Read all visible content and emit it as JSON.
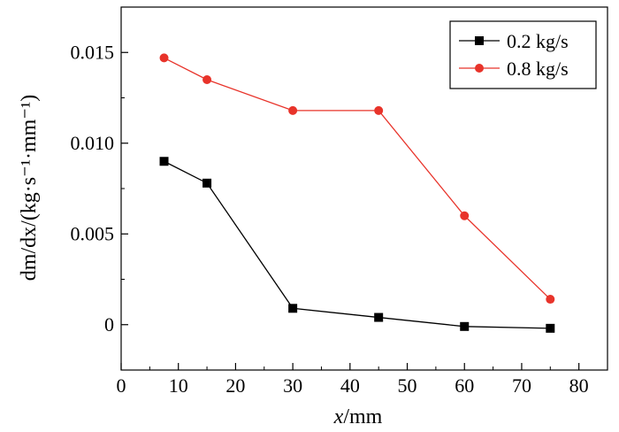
{
  "chart_data": {
    "type": "line",
    "xlabel": "x/mm",
    "ylabel": "dm/dx/(kg·s⁻¹·mm⁻¹)",
    "xlim": [
      0,
      85
    ],
    "ylim": [
      -0.0025,
      0.0175
    ],
    "x_ticks": [
      0,
      10,
      20,
      30,
      40,
      50,
      60,
      70,
      80
    ],
    "x_tick_labels": [
      "0",
      "10",
      "20",
      "30",
      "40",
      "50",
      "60",
      "70",
      "80"
    ],
    "y_ticks": [
      0,
      0.005,
      0.01,
      0.015
    ],
    "y_tick_labels": [
      "0",
      "0.005",
      "0.010",
      "0.015"
    ],
    "grid": false,
    "legend_position": "top-right",
    "series": [
      {
        "name": "0.2 kg/s",
        "color": "#000000",
        "marker": "square",
        "x": [
          7.5,
          15,
          30,
          45,
          60,
          75
        ],
        "y": [
          0.009,
          0.0078,
          0.0009,
          0.0004,
          -0.0001,
          -0.0002
        ]
      },
      {
        "name": "0.8 kg/s",
        "color": "#e8332a",
        "marker": "circle",
        "x": [
          7.5,
          15,
          30,
          45,
          60,
          75
        ],
        "y": [
          0.0147,
          0.0135,
          0.0118,
          0.0118,
          0.006,
          0.0014
        ]
      }
    ]
  }
}
